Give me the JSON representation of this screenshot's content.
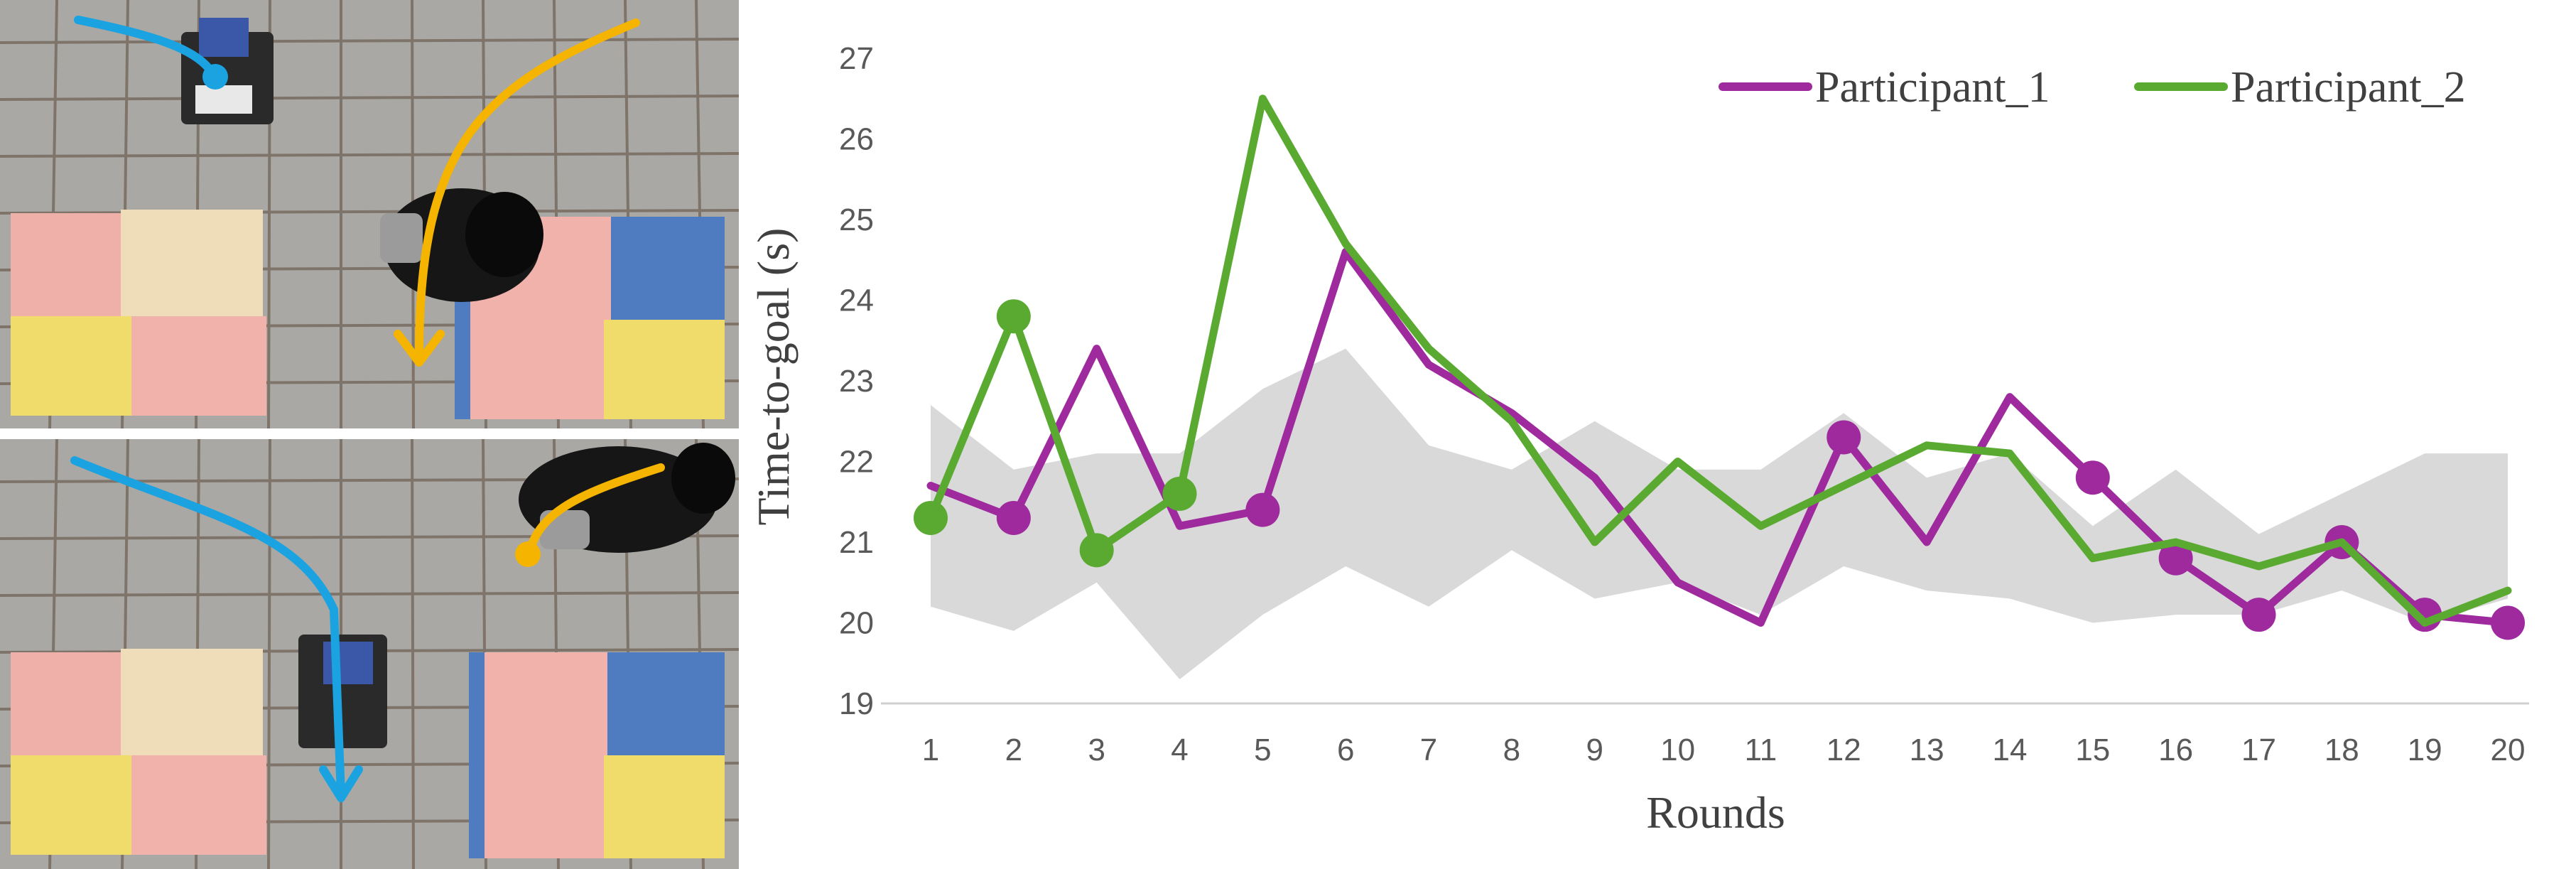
{
  "photos": [
    {
      "robot_path_color": "#1aa3e0",
      "human_path_color": "#f5b400",
      "tile_colors": [
        "#eeb0a8",
        "#efdcb9",
        "#f0dc6a",
        "#f0b2ab",
        "#4f7bc0"
      ]
    },
    {
      "robot_path_color": "#1aa3e0",
      "human_path_color": "#f5b400",
      "tile_colors": [
        "#eeb0a8",
        "#efdcb9",
        "#f0dc6a",
        "#f0b2ab",
        "#4f7bc0"
      ]
    }
  ],
  "chart_data": {
    "type": "line",
    "title": "",
    "xlabel": "Rounds",
    "ylabel": "Time-to-goal (s)",
    "x": [
      1,
      2,
      3,
      4,
      5,
      6,
      7,
      8,
      9,
      10,
      11,
      12,
      13,
      14,
      15,
      16,
      17,
      18,
      19,
      20
    ],
    "ylim": [
      19,
      27
    ],
    "yticks": [
      19,
      20,
      21,
      22,
      23,
      24,
      25,
      26,
      27
    ],
    "grid": false,
    "legend_position": "top-right",
    "series": [
      {
        "name": "Participant_1",
        "color": "#9e2a9e",
        "values": [
          21.7,
          21.3,
          23.4,
          21.2,
          21.4,
          24.6,
          23.2,
          22.6,
          21.8,
          20.5,
          20.0,
          22.3,
          21.0,
          22.8,
          21.8,
          20.8,
          20.1,
          21.0,
          20.1,
          20.0
        ],
        "markers": [
          2,
          5,
          12,
          15,
          16,
          17,
          18,
          19,
          20
        ]
      },
      {
        "name": "Participant_2",
        "color": "#5aaa32",
        "values": [
          21.3,
          23.8,
          20.9,
          21.6,
          26.5,
          24.7,
          23.4,
          22.5,
          21.0,
          22.0,
          21.2,
          21.7,
          22.2,
          22.1,
          20.8,
          21.0,
          20.7,
          21.0,
          20.0,
          20.4
        ],
        "markers": [
          1,
          2,
          3,
          4
        ]
      }
    ],
    "band": {
      "color": "#d9d9d9",
      "upper": [
        22.7,
        21.9,
        22.1,
        22.1,
        22.9,
        23.4,
        22.2,
        21.9,
        22.5,
        21.9,
        21.9,
        22.6,
        21.8,
        22.1,
        21.2,
        21.9,
        21.1,
        21.6,
        22.1,
        22.1
      ],
      "lower": [
        20.2,
        19.9,
        20.5,
        19.3,
        20.1,
        20.7,
        20.2,
        20.9,
        20.3,
        20.5,
        20.1,
        20.7,
        20.4,
        20.3,
        20.0,
        20.1,
        20.1,
        20.4,
        20.0,
        20.3
      ]
    }
  }
}
